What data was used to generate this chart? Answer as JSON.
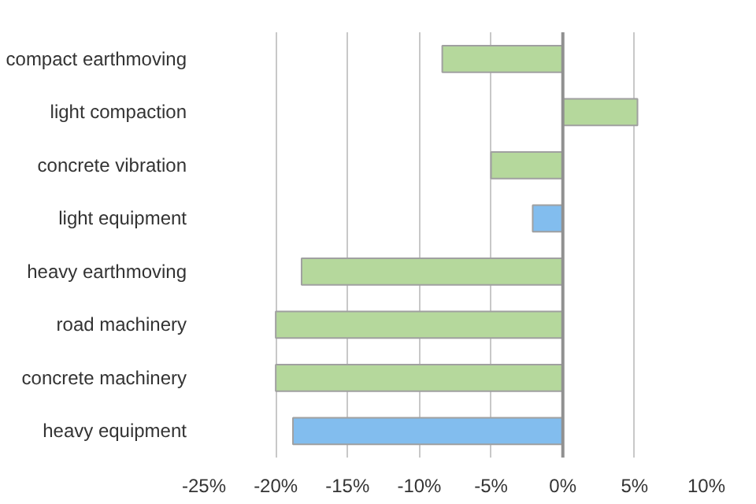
{
  "chart_data": {
    "type": "bar",
    "orientation": "horizontal",
    "categories": [
      "compact earthmoving",
      "light compaction",
      "concrete vibration",
      "light equipment",
      "heavy earthmoving",
      "road machinery",
      "concrete machinery",
      "heavy equipment"
    ],
    "values": [
      -8.4,
      5.2,
      -5.0,
      -2.1,
      -18.2,
      -20.0,
      -20.0,
      -18.8
    ],
    "colors": [
      "#b5d89c",
      "#b5d89c",
      "#b5d89c",
      "#82bdee",
      "#b5d89c",
      "#b5d89c",
      "#b5d89c",
      "#82bdee"
    ],
    "xlim": [
      -25,
      10
    ],
    "xticks": [
      {
        "value": -25,
        "label": "-25%"
      },
      {
        "value": -20,
        "label": "-20%"
      },
      {
        "value": -15,
        "label": "-15%"
      },
      {
        "value": -10,
        "label": "-10%"
      },
      {
        "value": -5,
        "label": "-5%"
      },
      {
        "value": 0,
        "label": "0%"
      },
      {
        "value": 5,
        "label": "5%"
      },
      {
        "value": 10,
        "label": "10%"
      }
    ],
    "grid": "x"
  }
}
